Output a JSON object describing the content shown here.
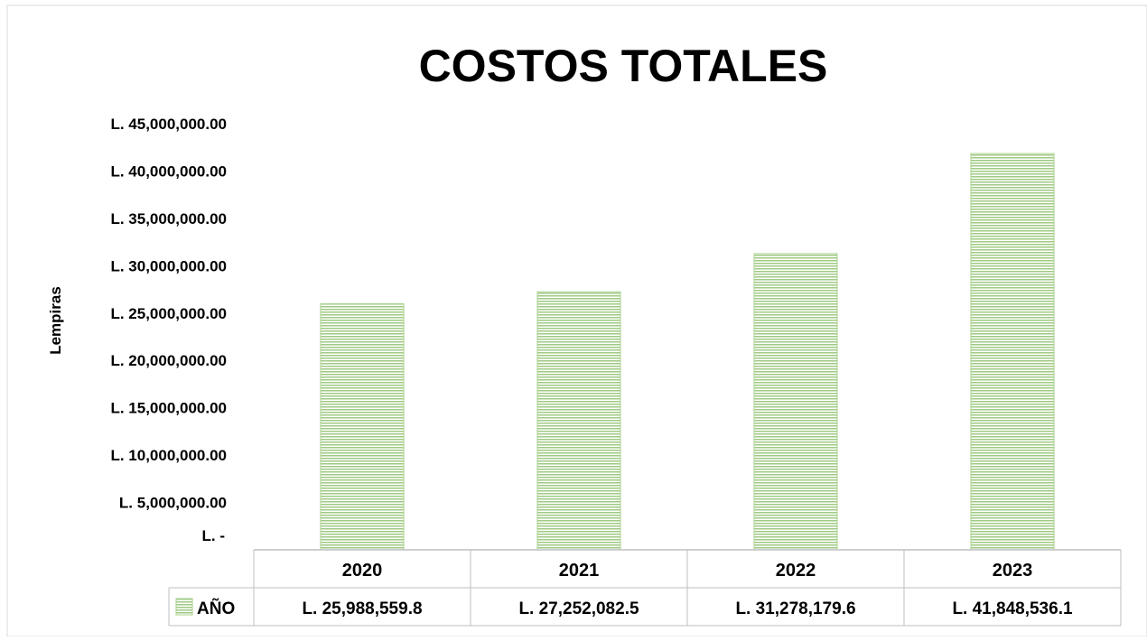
{
  "chart_data": {
    "type": "bar",
    "title": "COSTOS TOTALES",
    "xlabel": "",
    "ylabel": "Lempiras",
    "categories": [
      "2020",
      "2021",
      "2022",
      "2023"
    ],
    "series": [
      {
        "name": "AÑO",
        "values": [
          25988559.8,
          27252082.5,
          31278179.6,
          41848536.1
        ],
        "value_labels": [
          "L. 25,988,559.8",
          "L. 27,252,082.5",
          "L. 31,278,179.6",
          "L. 41,848,536.1"
        ]
      }
    ],
    "ylim": [
      0,
      45000000
    ],
    "y_ticks": [
      0,
      5000000,
      10000000,
      15000000,
      20000000,
      25000000,
      30000000,
      35000000,
      40000000,
      45000000
    ],
    "y_tick_labels": [
      "L. -",
      "L. 5,000,000.00",
      "L. 10,000,000.00",
      "L. 15,000,000.00",
      "L. 20,000,000.00",
      "L. 25,000,000.00",
      "L. 30,000,000.00",
      "L. 35,000,000.00",
      "L. 40,000,000.00",
      "L. 45,000,000.00"
    ],
    "grid": false,
    "legend": "data-table",
    "data_table": true,
    "colors": {
      "bar_fill": "#a9d18e",
      "bar_stripe": "#70ad47",
      "table_border": "#bfbfbf",
      "frame": "#d9d9d9"
    }
  }
}
